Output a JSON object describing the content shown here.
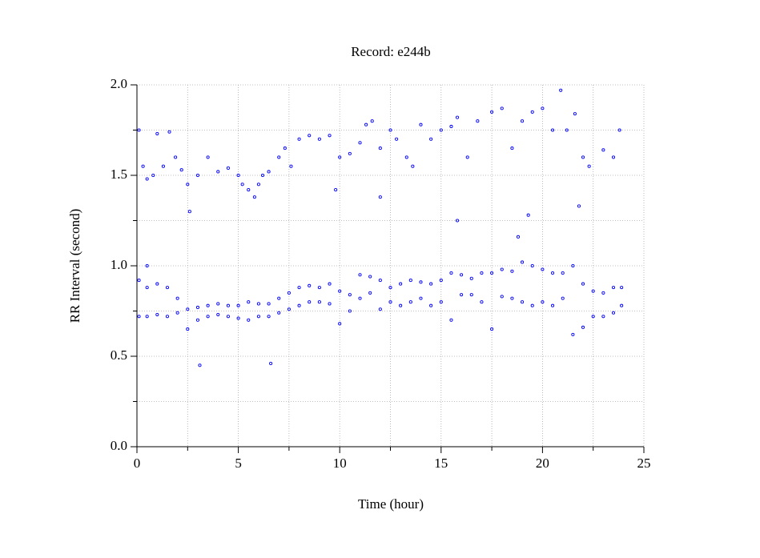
{
  "chart_data": {
    "type": "scatter",
    "title": "Record:  e244b",
    "x_label": "Time (hour)",
    "y_label": "RR Interval (second)",
    "xlim": [
      0,
      25
    ],
    "xticks": [
      0,
      5,
      10,
      15,
      20,
      25
    ],
    "xminorticks": [
      2.5,
      7.5,
      12.5,
      17.5,
      22.5
    ],
    "ylim": [
      0,
      2
    ],
    "yticks": [
      {
        "value": 0,
        "label": "0.0"
      },
      {
        "value": 0.5,
        "label": "0.5"
      },
      {
        "value": 1,
        "label": "1.0"
      },
      {
        "value": 1.5,
        "label": "1.5"
      },
      {
        "value": 2,
        "label": "2.0"
      }
    ],
    "yminorticks": [
      0.25,
      0.75,
      1.25,
      1.75
    ],
    "grid": true,
    "series": [
      {
        "color": "#0000ff",
        "x": [
          0.1,
          0.5,
          1,
          1.5,
          2,
          2.5,
          3,
          3.5,
          4,
          4.5,
          5,
          5.5,
          6,
          6.5,
          7,
          7.5,
          8,
          8.5,
          9,
          9.5,
          10,
          10.5,
          11,
          11.5,
          12,
          12.5,
          13,
          13.5,
          14,
          14.5,
          15,
          15.5,
          16,
          16.5,
          17,
          17.5,
          18,
          18.5,
          19,
          19.5,
          20,
          20.5,
          21,
          21.5,
          22,
          22.5,
          23,
          23.5,
          23.9,
          0.1,
          0.5,
          1,
          1.5,
          2,
          2.5,
          3,
          3.5,
          4,
          4.5,
          5,
          5.5,
          6,
          6.5,
          7,
          7.5,
          8,
          8.5,
          9,
          9.5,
          10,
          10.5,
          11,
          11.5,
          12,
          12.5,
          13,
          13.5,
          14,
          14.5,
          15,
          15.5,
          16,
          16.5,
          17,
          17.5,
          18,
          18.5,
          19,
          19.5,
          20,
          20.5,
          21,
          21.5,
          22,
          22.5,
          23,
          23.5,
          23.9,
          0.1,
          0.3,
          0.5,
          0.8,
          1,
          1.3,
          1.6,
          1.9,
          2.2,
          2.5,
          2.6,
          3,
          3.5,
          4,
          4.5,
          5,
          5.2,
          5.5,
          5.8,
          6,
          6.2,
          6.5,
          7,
          7.3,
          7.6,
          8,
          8.5,
          9,
          9.5,
          10,
          10.5,
          11,
          11.3,
          11.6,
          12,
          12.5,
          12.8,
          13.3,
          13.6,
          14,
          14.5,
          15,
          15.5,
          15.8,
          16.3,
          16.8,
          17.5,
          18,
          18.5,
          19,
          19.5,
          20,
          20.5,
          20.9,
          21.2,
          21.6,
          22,
          22.3,
          23,
          23.5,
          23.8,
          3.1,
          6.6,
          0.5,
          15.8,
          19.3,
          18.8,
          12,
          9.8,
          21.8
        ],
        "values": [
          0.72,
          0.72,
          0.73,
          0.72,
          0.74,
          0.65,
          0.7,
          0.72,
          0.73,
          0.72,
          0.71,
          0.7,
          0.72,
          0.72,
          0.74,
          0.76,
          0.78,
          0.8,
          0.8,
          0.79,
          0.68,
          0.75,
          0.82,
          0.85,
          0.76,
          0.8,
          0.78,
          0.8,
          0.82,
          0.78,
          0.8,
          0.7,
          0.84,
          0.84,
          0.8,
          0.65,
          0.83,
          0.82,
          0.8,
          0.78,
          0.8,
          0.78,
          0.82,
          0.62,
          0.66,
          0.72,
          0.72,
          0.74,
          0.78,
          0.92,
          0.88,
          0.9,
          0.88,
          0.82,
          0.76,
          0.77,
          0.78,
          0.79,
          0.78,
          0.78,
          0.8,
          0.79,
          0.79,
          0.82,
          0.85,
          0.88,
          0.89,
          0.88,
          0.9,
          0.86,
          0.84,
          0.95,
          0.94,
          0.92,
          0.88,
          0.9,
          0.92,
          0.91,
          0.9,
          0.92,
          0.96,
          0.95,
          0.93,
          0.96,
          0.96,
          0.98,
          0.97,
          1.02,
          1.0,
          0.98,
          0.96,
          0.96,
          1.0,
          0.9,
          0.86,
          0.85,
          0.88,
          0.88,
          1.75,
          1.55,
          1.48,
          1.5,
          1.73,
          1.55,
          1.74,
          1.6,
          1.53,
          1.45,
          1.3,
          1.5,
          1.6,
          1.52,
          1.54,
          1.5,
          1.45,
          1.42,
          1.38,
          1.45,
          1.5,
          1.52,
          1.6,
          1.65,
          1.55,
          1.7,
          1.72,
          1.7,
          1.72,
          1.6,
          1.62,
          1.68,
          1.78,
          1.8,
          1.65,
          1.75,
          1.7,
          1.6,
          1.55,
          1.78,
          1.7,
          1.75,
          1.77,
          1.82,
          1.6,
          1.8,
          1.85,
          1.87,
          1.65,
          1.8,
          1.85,
          1.87,
          1.75,
          1.97,
          1.75,
          1.84,
          1.6,
          1.55,
          1.64,
          1.6,
          1.75,
          0.45,
          0.46,
          1.0,
          1.25,
          1.28,
          1.16,
          1.38,
          1.42,
          1.33
        ]
      }
    ]
  }
}
